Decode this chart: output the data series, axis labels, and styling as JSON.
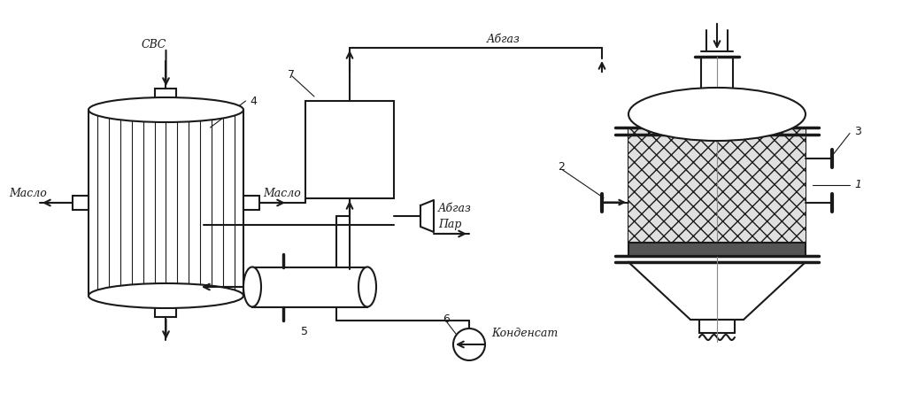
{
  "bg_color": "#ffffff",
  "line_color": "#1a1a1a",
  "text_color": "#1a1a1a",
  "line_width": 1.5,
  "labels": {
    "svc": "СВС",
    "maslo_left": "Масло",
    "maslo_right": "Масло",
    "abgaz_top": "Абгаз",
    "abgaz_mid": "Абгаз",
    "par": "Пар",
    "kondensат": "Конденсат",
    "num4": "4",
    "num7": "7",
    "num5": "5",
    "num6": "6",
    "num1": "1",
    "num2": "2",
    "num3": "3"
  }
}
